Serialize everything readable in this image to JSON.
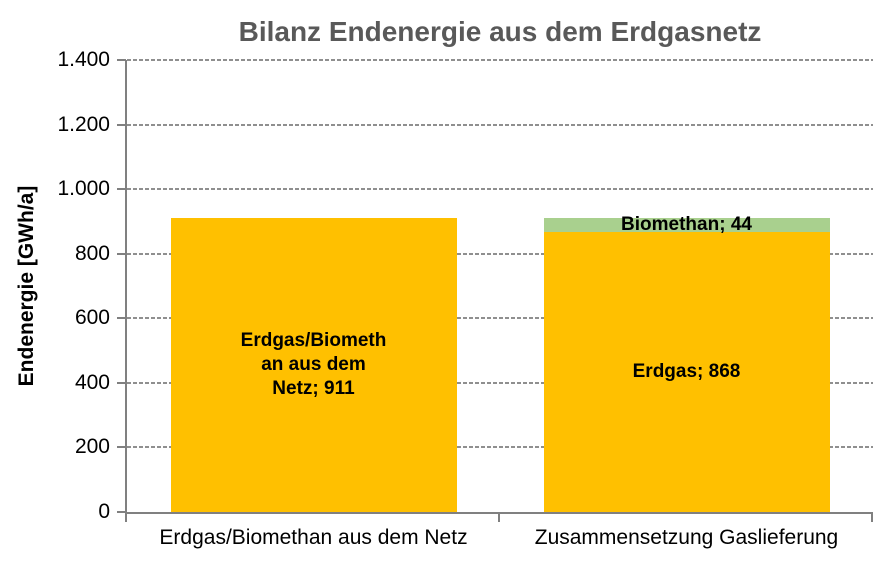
{
  "chart_data": {
    "type": "bar",
    "stacked": true,
    "title": "Bilanz Endenergie aus dem Erdgasnetz",
    "xlabel": "",
    "ylabel": "Endenergie [GWh/a]",
    "ylim": [
      0,
      1400
    ],
    "yticks": [
      0,
      200,
      400,
      600,
      800,
      1000,
      1200,
      1400
    ],
    "ytick_labels": [
      "0",
      "200",
      "400",
      "600",
      "800",
      "1.000",
      "1.200",
      "1.400"
    ],
    "grid": "horizontal-dashed",
    "legend_position": "none",
    "categories": [
      "Erdgas/Biomethan aus dem Netz",
      "Zusammensetzung Gaslieferung"
    ],
    "series": [
      {
        "name": "Erdgas/Biomethan aus dem Netz",
        "color": "#FFC000",
        "values": [
          911,
          null
        ],
        "labels": [
          [
            "Erdgas/Biometh",
            "an aus dem",
            "Netz; 911"
          ],
          null
        ]
      },
      {
        "name": "Erdgas",
        "color": "#FFC000",
        "values": [
          null,
          868
        ],
        "labels": [
          null,
          [
            "Erdgas; 868"
          ]
        ]
      },
      {
        "name": "Biomethan",
        "color": "#A9D08E",
        "values": [
          null,
          44
        ],
        "labels": [
          null,
          [
            "Biomethan; 44"
          ]
        ]
      }
    ],
    "colors": {
      "erdgas_bar": "#FFC000",
      "biomethan_bar": "#A9D08E",
      "title_text": "#595959",
      "axis_line": "#808080",
      "gridline": "#8F8F8F",
      "label_text": "#000000"
    }
  }
}
